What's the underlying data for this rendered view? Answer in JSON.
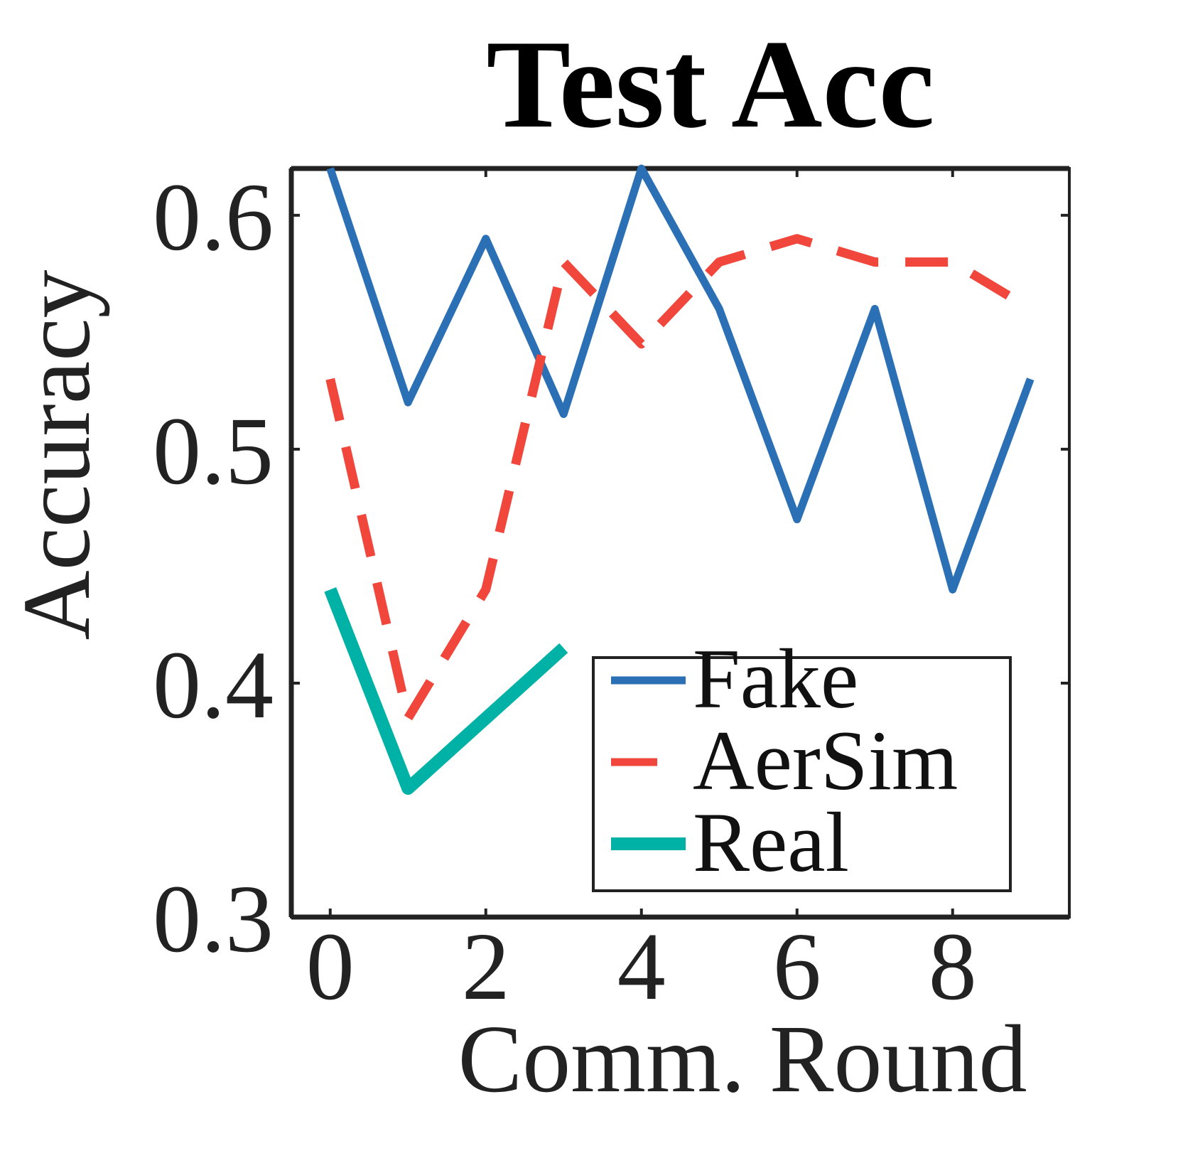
{
  "chart_data": {
    "type": "line",
    "title": "Test Acc",
    "xlabel": "Comm. Round",
    "ylabel": "Accuracy",
    "xlim": [
      -0.5,
      9.5
    ],
    "ylim": [
      0.3,
      0.62
    ],
    "xticks": [
      0,
      2,
      4,
      6,
      8
    ],
    "yticks": [
      0.3,
      0.4,
      0.5,
      0.6
    ],
    "xtick_labels": [
      "0",
      "2",
      "4",
      "6",
      "8"
    ],
    "ytick_labels": [
      "0.3",
      "0.4",
      "0.5",
      "0.6"
    ],
    "grid": false,
    "legend_position": "bottom-right",
    "series": [
      {
        "name": "Fake",
        "color": "#2b6fb5",
        "style": "solid",
        "x": [
          0,
          1,
          2,
          3,
          4,
          5,
          6,
          7,
          8,
          9
        ],
        "y": [
          0.62,
          0.52,
          0.59,
          0.515,
          0.62,
          0.56,
          0.47,
          0.56,
          0.44,
          0.53
        ]
      },
      {
        "name": "AerSim",
        "color": "#f0463b",
        "style": "dashed",
        "x": [
          0,
          1,
          2,
          3,
          4,
          5,
          6,
          7,
          8,
          9
        ],
        "y": [
          0.53,
          0.385,
          0.44,
          0.58,
          0.545,
          0.58,
          0.59,
          0.58,
          0.58,
          0.56
        ]
      },
      {
        "name": "Real",
        "color": "#00b2a6",
        "style": "solid",
        "x": [
          0,
          1,
          2,
          3
        ],
        "y": [
          0.44,
          0.355,
          0.385,
          0.415
        ]
      }
    ]
  }
}
